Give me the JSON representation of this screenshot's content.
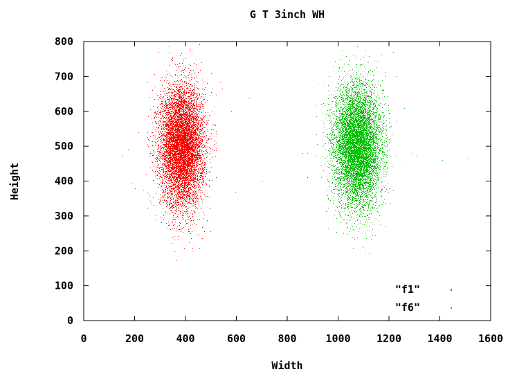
{
  "chart_data": {
    "type": "scatter",
    "title": "G T 3inch WH",
    "xlabel": "Width",
    "ylabel": "Height",
    "xlim": [
      0,
      1600
    ],
    "ylim": [
      0,
      800
    ],
    "xticks": [
      "0",
      "200",
      "400",
      "600",
      "800",
      "1000",
      "1200",
      "1400",
      "1600"
    ],
    "yticks": [
      "0",
      "100",
      "200",
      "300",
      "400",
      "500",
      "600",
      "700",
      "800"
    ],
    "grid": false,
    "legend_position": "bottom-right",
    "series": [
      {
        "name": "\"f1\"",
        "color": "#ff0000",
        "cluster": {
          "center": [
            385,
            500
          ],
          "std": [
            42,
            85
          ],
          "count": 9000,
          "x_range": [
            150,
            700
          ],
          "y_range": [
            170,
            800
          ]
        },
        "points": [
          [
            150,
            470
          ],
          [
            175,
            490
          ],
          [
            185,
            395
          ],
          [
            200,
            380
          ],
          [
            650,
            640
          ],
          [
            700,
            400
          ],
          [
            595,
            370
          ],
          [
            580,
            600
          ],
          [
            880,
            410
          ],
          [
            860,
            480
          ],
          [
            545,
            665
          ],
          [
            520,
            410
          ]
        ]
      },
      {
        "name": "\"f6\"",
        "color": "#00c000",
        "cluster": {
          "center": [
            1075,
            500
          ],
          "std": [
            45,
            85
          ],
          "count": 9000,
          "x_range": [
            880,
            1520
          ],
          "y_range": [
            190,
            790
          ]
        },
        "points": [
          [
            940,
            470
          ],
          [
            950,
            490
          ],
          [
            1310,
            475
          ],
          [
            1290,
            480
          ],
          [
            1410,
            460
          ],
          [
            1510,
            465
          ],
          [
            1260,
            610
          ],
          [
            880,
            480
          ],
          [
            1005,
            700
          ],
          [
            1140,
            745
          ]
        ]
      }
    ]
  }
}
